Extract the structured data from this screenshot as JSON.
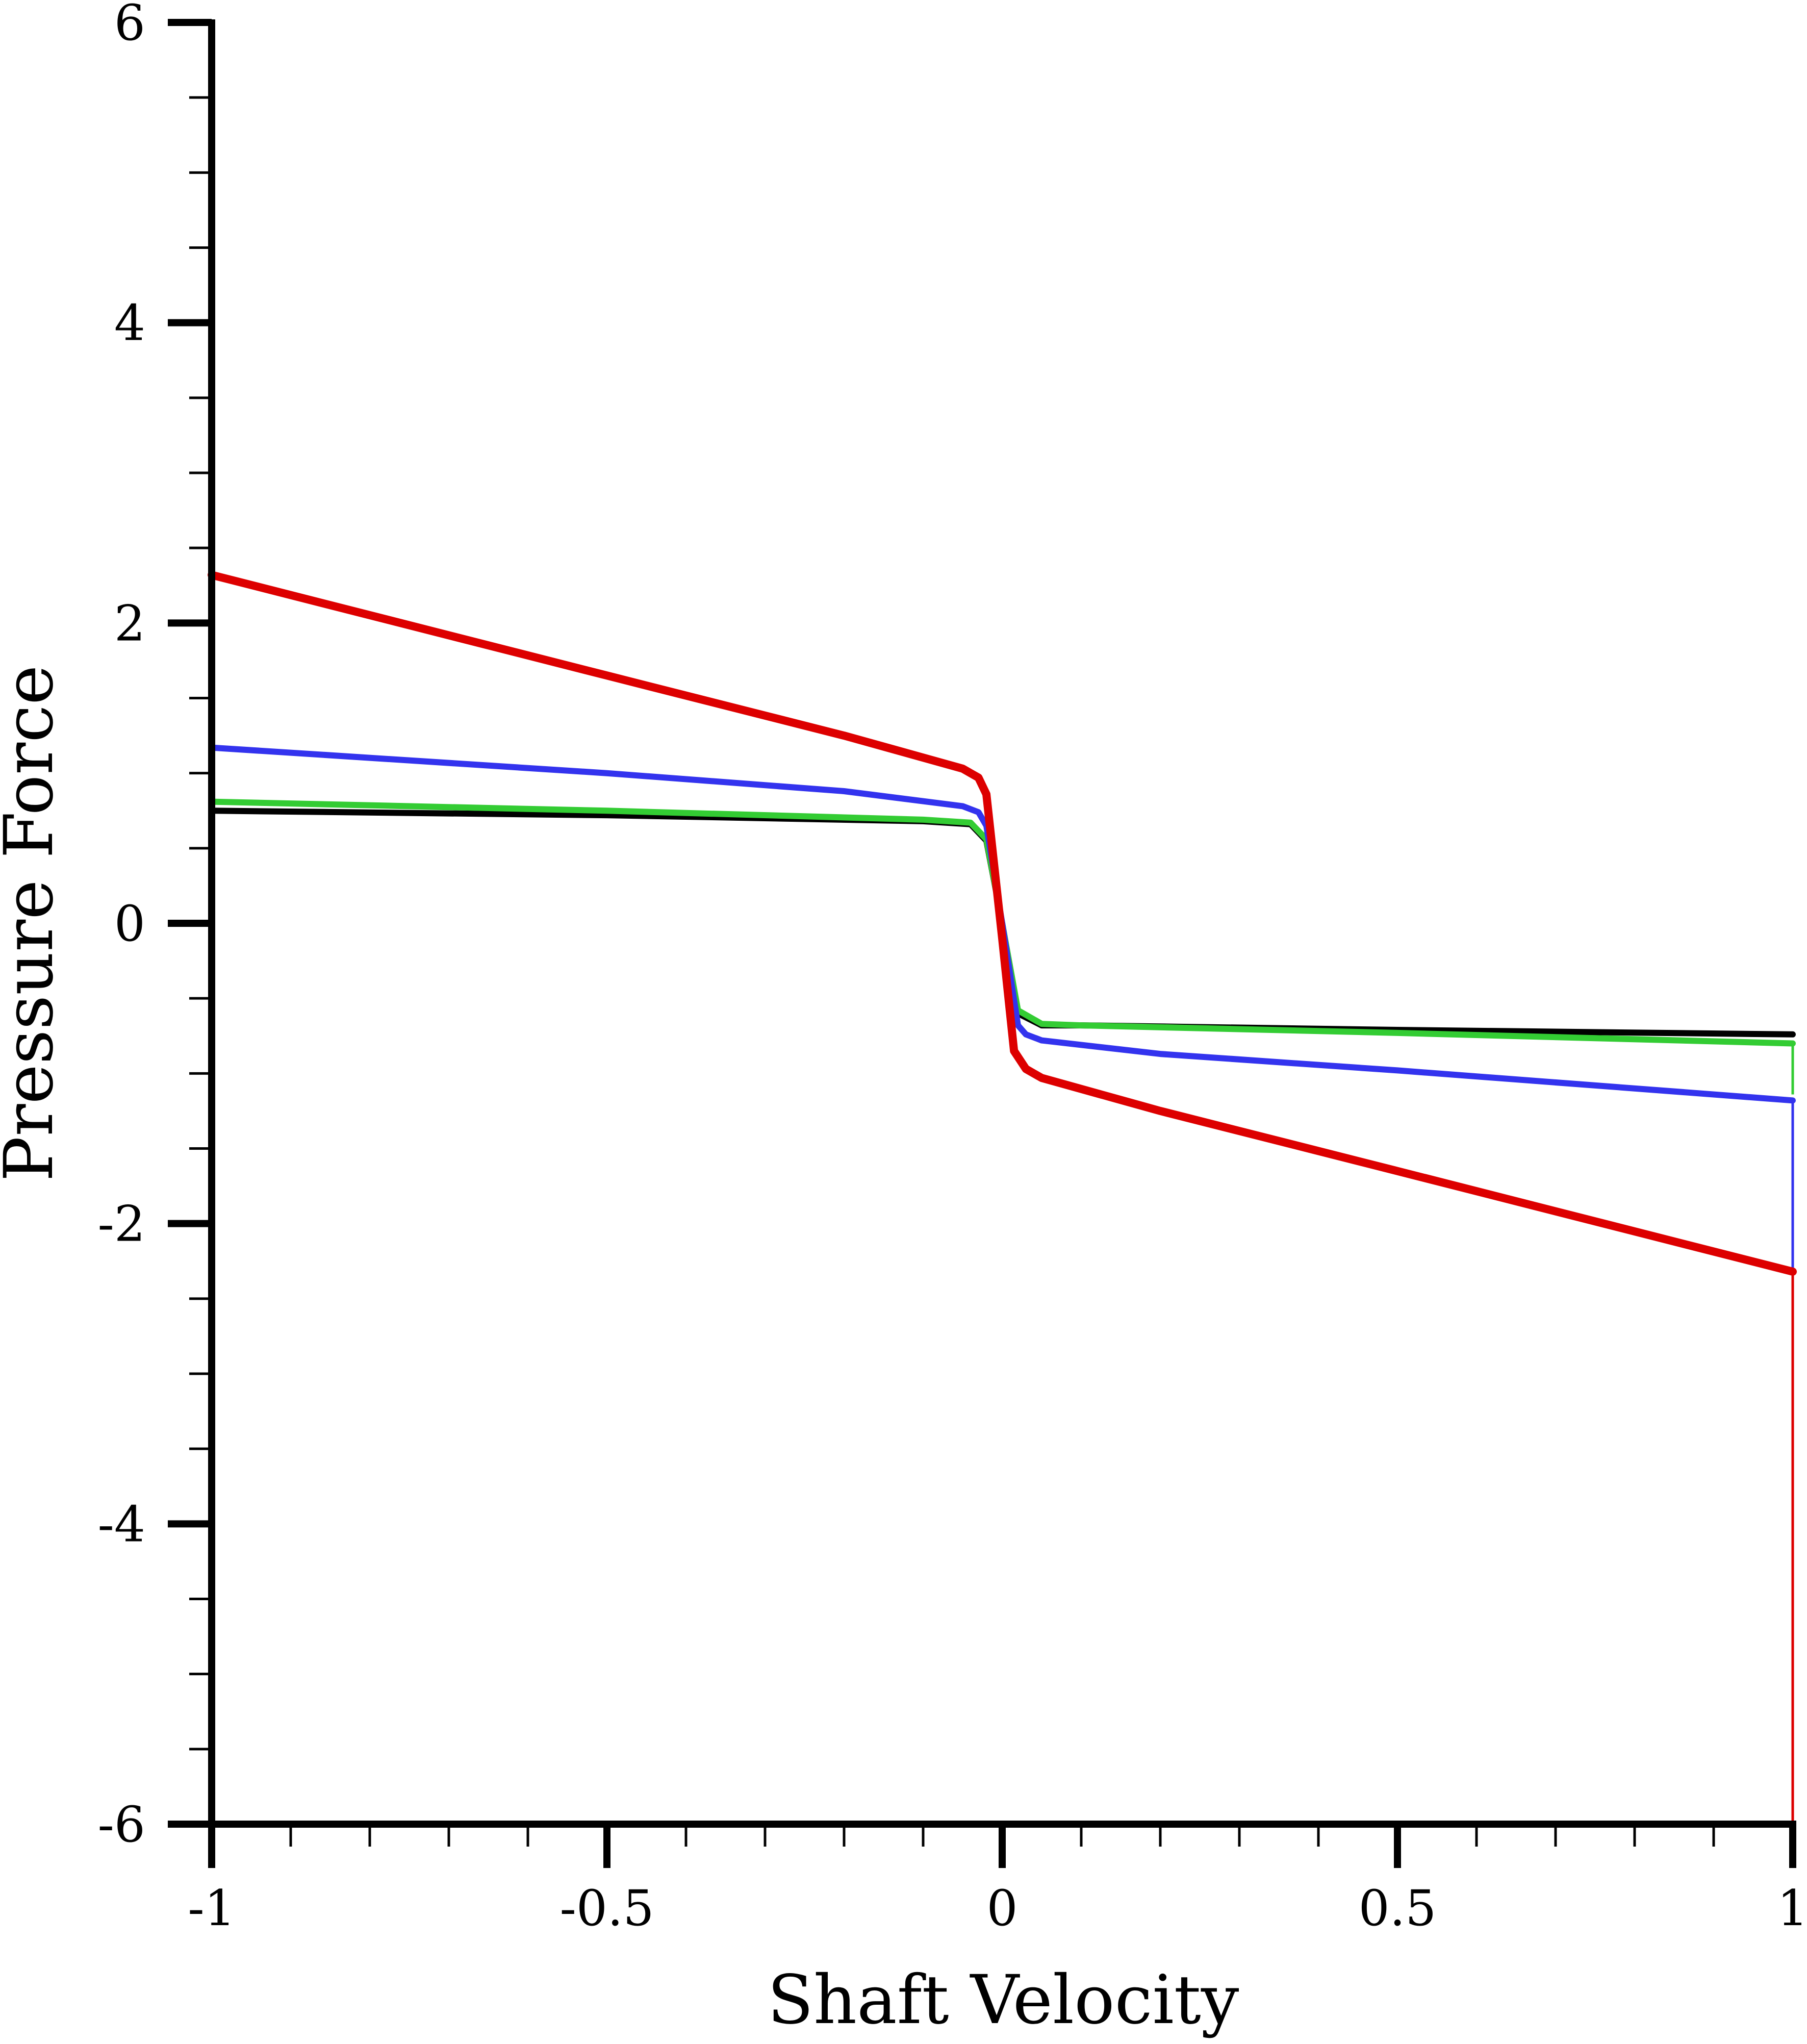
{
  "chart_data": {
    "type": "line",
    "title": "",
    "xlabel": "Shaft Velocity",
    "ylabel": "Pressure Force",
    "xlim": [
      -1,
      1
    ],
    "ylim": [
      -6,
      6
    ],
    "x_ticks": [
      -1,
      -0.5,
      0,
      0.5,
      1
    ],
    "x_tick_labels": [
      "-1",
      "-0.5",
      "0",
      "0.5",
      "1"
    ],
    "x_minor_step": 0.1,
    "y_ticks": [
      -6,
      -4,
      -2,
      0,
      2,
      4,
      6
    ],
    "y_tick_labels": [
      "-6",
      "-4",
      "-2",
      "0",
      "2",
      "4",
      "6"
    ],
    "y_minor_step": 0.5,
    "grid": false,
    "legend": "none",
    "series": [
      {
        "color": "#000000",
        "x": [
          -1,
          -0.5,
          -0.1,
          -0.04,
          -0.02,
          0.0,
          0.02,
          0.05,
          0.1,
          0.5,
          1.0
        ],
        "y": [
          0.75,
          0.72,
          0.68,
          0.66,
          0.55,
          0.0,
          -0.6,
          -0.68,
          -0.68,
          -0.71,
          -0.74
        ],
        "end_drop_to": -0.74
      },
      {
        "color": "#33cc33",
        "x": [
          -1,
          -0.5,
          -0.1,
          -0.04,
          -0.02,
          0.0,
          0.02,
          0.05,
          0.1,
          0.5,
          1.0
        ],
        "y": [
          0.81,
          0.75,
          0.69,
          0.67,
          0.56,
          0.0,
          -0.58,
          -0.67,
          -0.68,
          -0.73,
          -0.8
        ],
        "end_drop_to": -1.14
      },
      {
        "color": "#3333ee",
        "x": [
          -1,
          -0.5,
          -0.2,
          -0.05,
          -0.03,
          -0.02,
          0.0,
          0.02,
          0.03,
          0.05,
          0.2,
          0.5,
          1.0
        ],
        "y": [
          1.17,
          1.0,
          0.88,
          0.78,
          0.74,
          0.65,
          0.0,
          -0.68,
          -0.74,
          -0.78,
          -0.87,
          -0.98,
          -1.18
        ],
        "end_drop_to": -2.32
      },
      {
        "color": "#dd0000",
        "x": [
          -1,
          -0.5,
          -0.2,
          -0.05,
          -0.03,
          -0.02,
          0.0,
          0.015,
          0.03,
          0.05,
          0.2,
          0.5,
          1.0
        ],
        "y": [
          2.32,
          1.65,
          1.25,
          1.03,
          0.97,
          0.86,
          -0.1,
          -0.85,
          -0.97,
          -1.03,
          -1.25,
          -1.65,
          -2.32
        ],
        "end_drop_to": -6
      }
    ]
  }
}
